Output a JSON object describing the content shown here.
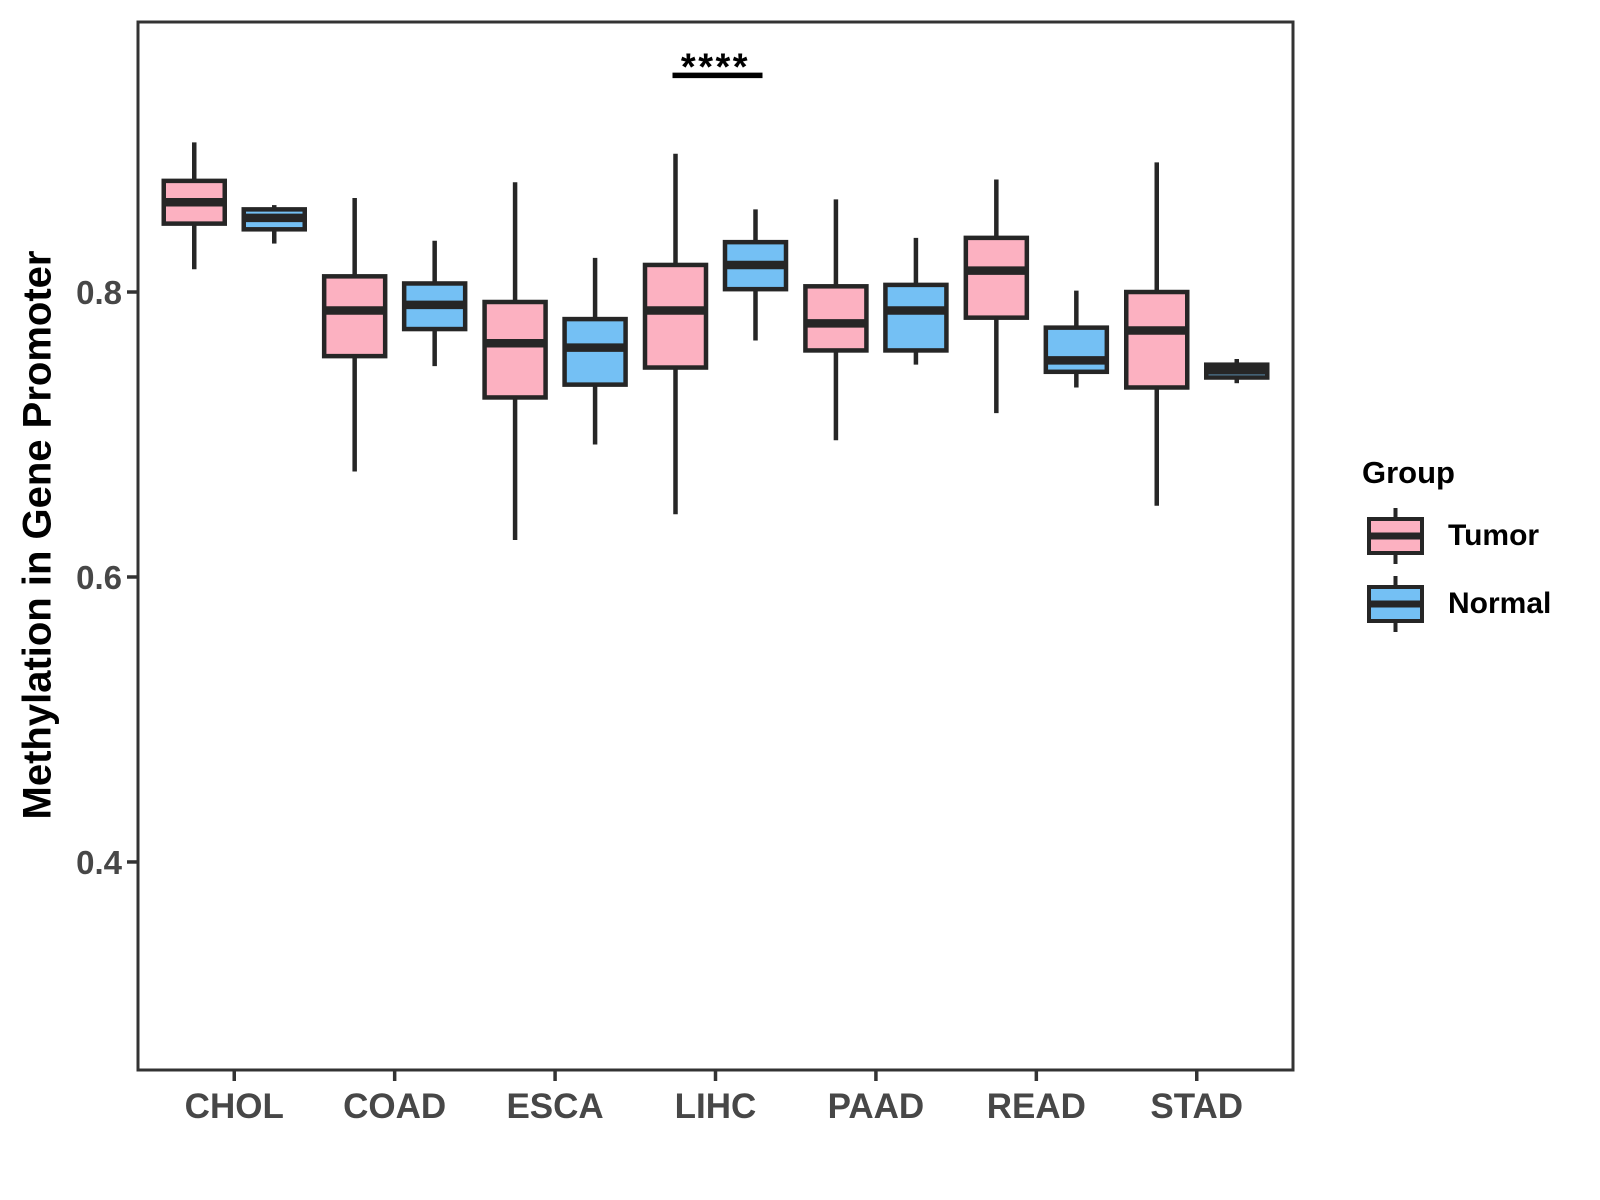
{
  "figure": {
    "background": "#FFFFFF",
    "y_axis_title": "Methylation in Gene Promoter",
    "legend": {
      "title": "Group",
      "items": [
        {
          "label": "Tumor",
          "color": "#FCB1C1"
        },
        {
          "label": "Normal",
          "color": "#74C0F4"
        }
      ]
    }
  },
  "style": {
    "box_border_color": "#262626",
    "panel_border_color": "#333333",
    "tick_color": "#333333",
    "tick_label_color": "#474747",
    "annotation_color": "#000000",
    "tumor_fill": "#FCB1C1",
    "normal_fill": "#74C0F4"
  },
  "chart_data": {
    "type": "boxplot",
    "title": "",
    "xlabel": "",
    "ylabel": "Methylation in Gene Promoter",
    "categories": [
      "CHOL",
      "COAD",
      "ESCA",
      "LIHC",
      "PAAD",
      "READ",
      "STAD"
    ],
    "y_ticks": [
      0.4,
      0.6,
      0.8
    ],
    "y_tick_labels": [
      "0.4",
      "0.6",
      "0.8"
    ],
    "ylim": [
      0.254,
      0.9895
    ],
    "grid": false,
    "legend_position": "right",
    "series": [
      {
        "name": "Tumor",
        "fill": "#FCB1C1",
        "boxes": [
          {
            "category": "CHOL",
            "whisker_low": 0.816,
            "q1": 0.848,
            "median": 0.863,
            "q3": 0.878,
            "whisker_high": 0.905
          },
          {
            "category": "COAD",
            "whisker_low": 0.674,
            "q1": 0.755,
            "median": 0.787,
            "q3": 0.811,
            "whisker_high": 0.866
          },
          {
            "category": "ESCA",
            "whisker_low": 0.626,
            "q1": 0.726,
            "median": 0.764,
            "q3": 0.793,
            "whisker_high": 0.877
          },
          {
            "category": "LIHC",
            "whisker_low": 0.644,
            "q1": 0.747,
            "median": 0.787,
            "q3": 0.819,
            "whisker_high": 0.897
          },
          {
            "category": "PAAD",
            "whisker_low": 0.696,
            "q1": 0.759,
            "median": 0.778,
            "q3": 0.804,
            "whisker_high": 0.865
          },
          {
            "category": "READ",
            "whisker_low": 0.715,
            "q1": 0.782,
            "median": 0.815,
            "q3": 0.838,
            "whisker_high": 0.879
          },
          {
            "category": "STAD",
            "whisker_low": 0.65,
            "q1": 0.733,
            "median": 0.773,
            "q3": 0.8,
            "whisker_high": 0.891
          }
        ]
      },
      {
        "name": "Normal",
        "fill": "#74C0F4",
        "boxes": [
          {
            "category": "CHOL",
            "whisker_low": 0.834,
            "q1": 0.844,
            "median": 0.852,
            "q3": 0.858,
            "whisker_high": 0.861
          },
          {
            "category": "COAD",
            "whisker_low": 0.748,
            "q1": 0.774,
            "median": 0.791,
            "q3": 0.806,
            "whisker_high": 0.836
          },
          {
            "category": "ESCA",
            "whisker_low": 0.693,
            "q1": 0.735,
            "median": 0.761,
            "q3": 0.781,
            "whisker_high": 0.824
          },
          {
            "category": "LIHC",
            "whisker_low": 0.766,
            "q1": 0.802,
            "median": 0.819,
            "q3": 0.835,
            "whisker_high": 0.858
          },
          {
            "category": "PAAD",
            "whisker_low": 0.749,
            "q1": 0.759,
            "median": 0.787,
            "q3": 0.805,
            "whisker_high": 0.838
          },
          {
            "category": "READ",
            "whisker_low": 0.733,
            "q1": 0.744,
            "median": 0.752,
            "q3": 0.775,
            "whisker_high": 0.801
          },
          {
            "category": "STAD",
            "whisker_low": 0.736,
            "q1": 0.74,
            "median": 0.745,
            "q3": 0.749,
            "whisker_high": 0.753
          }
        ]
      }
    ],
    "annotation": {
      "text": "****",
      "category": "LIHC",
      "compares": [
        "Tumor",
        "Normal"
      ],
      "line_y": 0.952,
      "text_y": 0.963
    }
  }
}
